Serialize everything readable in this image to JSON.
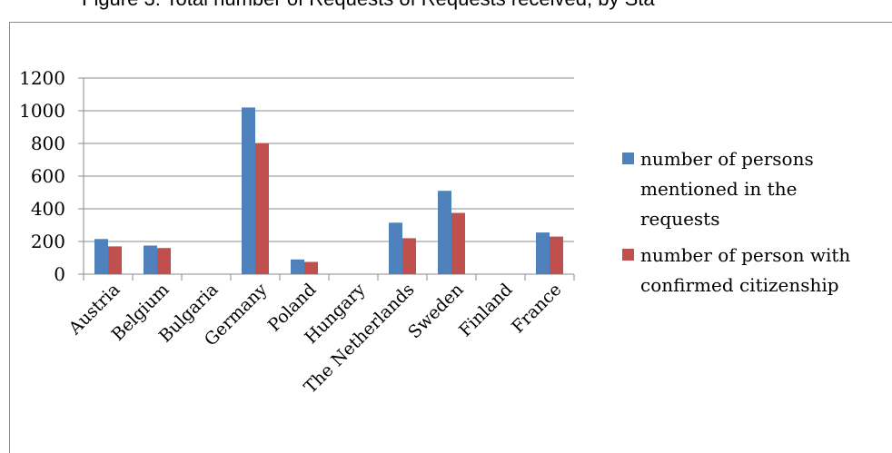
{
  "title": "Figure 3: Total number of Requests of Requests received, by Sta",
  "chart_data": {
    "type": "bar",
    "categories": [
      "Austria",
      "Belgium",
      "Bulgaria",
      "Germany",
      "Poland",
      "Hungary",
      "The Netherlands",
      "Sweden",
      "Finland",
      "France"
    ],
    "series": [
      {
        "name": "number of persons mentioned in the requests",
        "values": [
          215,
          175,
          0,
          1020,
          90,
          0,
          315,
          510,
          0,
          255
        ],
        "color": "#4f81bd"
      },
      {
        "name": "number of person with confirmed citizenship",
        "values": [
          170,
          160,
          0,
          800,
          75,
          0,
          220,
          375,
          0,
          230
        ],
        "color": "#c0504d"
      }
    ],
    "legend_lines": [
      [
        "number of persons",
        "mentioned in the",
        "requests"
      ],
      [
        "number of person with",
        "confirmed citizenship"
      ]
    ],
    "yticks": [
      "0",
      "200",
      "400",
      "600",
      "800",
      "1000",
      "1200"
    ],
    "ylim": [
      0,
      1200
    ],
    "grid": true,
    "legend_position": "right"
  }
}
